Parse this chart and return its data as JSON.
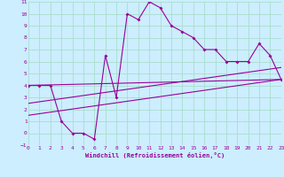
{
  "bg_color": "#cceeff",
  "line_color": "#990099",
  "grid_color": "#aaddcc",
  "xlabel": "Windchill (Refroidissement éolien,°C)",
  "xlim": [
    0,
    23
  ],
  "ylim": [
    -1,
    11
  ],
  "xticks": [
    0,
    1,
    2,
    3,
    4,
    5,
    6,
    7,
    8,
    9,
    10,
    11,
    12,
    13,
    14,
    15,
    16,
    17,
    18,
    19,
    20,
    21,
    22,
    23
  ],
  "yticks": [
    -1,
    0,
    1,
    2,
    3,
    4,
    5,
    6,
    7,
    8,
    9,
    10,
    11
  ],
  "series1_x": [
    0,
    1,
    2,
    3,
    4,
    5,
    6,
    7,
    8,
    9,
    10,
    11,
    12,
    13,
    14,
    15,
    16,
    17,
    18,
    19,
    20,
    21,
    22,
    23
  ],
  "series1_y": [
    4,
    4,
    4,
    1,
    0,
    0,
    -0.5,
    6.5,
    3,
    10,
    9.5,
    11,
    10.5,
    9,
    8.5,
    8,
    7,
    7,
    6,
    6,
    6,
    7.5,
    6.5,
    4.5
  ],
  "series2_x": [
    0,
    23
  ],
  "series2_y": [
    4,
    4.5
  ],
  "series3_x": [
    0,
    23
  ],
  "series3_y": [
    2.5,
    5.5
  ],
  "series4_x": [
    0,
    23
  ],
  "series4_y": [
    1.5,
    4.5
  ]
}
